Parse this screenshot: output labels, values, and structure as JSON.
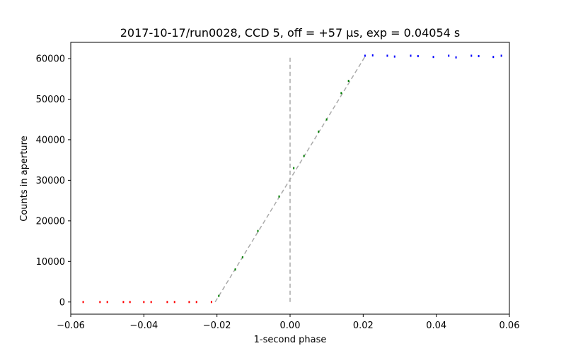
{
  "chart_data": {
    "type": "scatter",
    "title": "2017-10-17/run0028, CCD 5, off = +57 μs, exp = 0.04054 s",
    "xlabel": "1-second phase",
    "ylabel": "Counts in aperture",
    "xlim": [
      -0.06,
      0.06
    ],
    "ylim": [
      -3000,
      64000
    ],
    "xticks": [
      -0.06,
      -0.04,
      -0.02,
      0.0,
      0.02,
      0.04,
      0.06
    ],
    "xtick_labels": [
      "−0.06",
      "−0.04",
      "−0.02",
      "0.00",
      "0.02",
      "0.04",
      "0.06"
    ],
    "yticks": [
      0,
      10000,
      20000,
      30000,
      40000,
      50000,
      60000
    ],
    "ytick_labels": [
      "0",
      "10000",
      "20000",
      "30000",
      "40000",
      "50000",
      "60000"
    ],
    "grid": false,
    "series": [
      {
        "color": "#ff0000",
        "x": [
          -0.0566,
          -0.052,
          -0.05,
          -0.0456,
          -0.0438,
          -0.04,
          -0.038,
          -0.0336,
          -0.0316,
          -0.0276,
          -0.0256,
          -0.0215
        ],
        "y": [
          0,
          0,
          0,
          0,
          0,
          0,
          0,
          0,
          0,
          0,
          0,
          0
        ]
      },
      {
        "color": "#008000",
        "x": [
          -0.0195,
          -0.015,
          -0.013,
          -0.0088,
          -0.003,
          0.001,
          0.0038,
          0.0078,
          0.01,
          0.014,
          0.016
        ],
        "y": [
          1500,
          8000,
          11000,
          17500,
          26000,
          33000,
          36000,
          42000,
          45000,
          51500,
          54500
        ]
      },
      {
        "color": "#0000ff",
        "x": [
          0.0205,
          0.0226,
          0.0266,
          0.0286,
          0.033,
          0.035,
          0.0392,
          0.0434,
          0.0454,
          0.0496,
          0.0516,
          0.0556,
          0.0578
        ],
        "y": [
          60700,
          60800,
          60700,
          60500,
          60700,
          60600,
          60400,
          60700,
          60300,
          60700,
          60600,
          60400,
          60700
        ]
      }
    ],
    "reference_lines": [
      {
        "style": "dashed",
        "color": "#aaaaaa",
        "x": [
          -0.0205,
          0.0205
        ],
        "y": [
          0,
          60500
        ]
      },
      {
        "style": "dashed",
        "color": "#aaaaaa",
        "x": [
          0.0,
          0.0
        ],
        "y": [
          0,
          60700
        ]
      }
    ]
  }
}
